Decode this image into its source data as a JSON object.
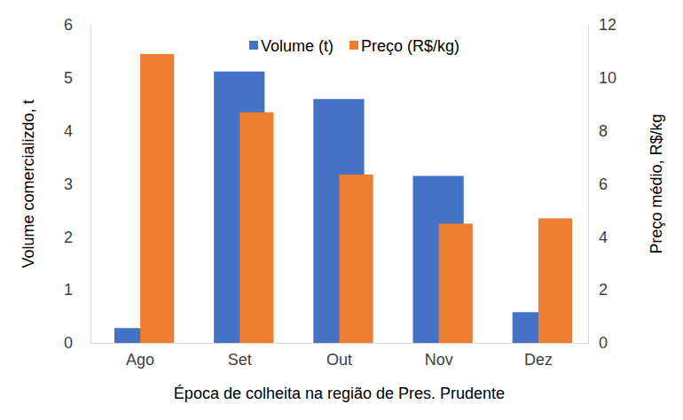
{
  "chart_data": {
    "type": "bar",
    "categories": [
      "Ago",
      "Set",
      "Out",
      "Nov",
      "Dez"
    ],
    "series": [
      {
        "name": "Volume (t)",
        "color": "#4472c4",
        "values": [
          0.28,
          5.12,
          4.6,
          3.15,
          0.58
        ]
      },
      {
        "name": "Preço (R$/kg)",
        "color": "#ed7d31",
        "values": [
          10.9,
          8.7,
          6.35,
          4.5,
          4.7
        ],
        "axis": "y2"
      }
    ],
    "xlabel": "Época de colheita na região de Pres. Prudente",
    "ylabel": "Volume comercializdo, t",
    "y2label": "Preço médio, R$/kg",
    "ylim": [
      0,
      6
    ],
    "yticks": [
      0,
      1,
      2,
      3,
      4,
      5,
      6
    ],
    "y2lim": [
      0,
      12
    ],
    "y2ticks": [
      0,
      2,
      4,
      6,
      8,
      10,
      12
    ],
    "grid": false,
    "legend": "top"
  }
}
